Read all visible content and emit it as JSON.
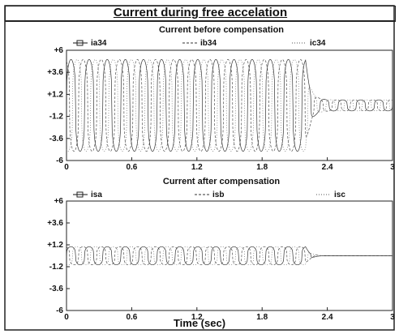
{
  "figure": {
    "title": "Current during free accelation",
    "xlabel": "Time (sec)"
  },
  "chart_data": [
    {
      "type": "line",
      "title": "Current before compensation",
      "xlabel": "Time (sec)",
      "ylabel": "",
      "xlim": [
        0,
        3
      ],
      "ylim": [
        -6,
        6
      ],
      "xticks": [
        "0",
        "0.6",
        "1.2",
        "1.8",
        "2.4",
        "3"
      ],
      "yticks": [
        "+6",
        "+3.6",
        "+1.2",
        "-1.2",
        "-3.6",
        "-6"
      ],
      "legend_position": "top",
      "series": [
        {
          "name": "ia34",
          "color": "#111111",
          "envelope_amplitude": 5.0,
          "settled_amplitude": 0.6,
          "settling_time_s": 2.2
        },
        {
          "name": "ib34",
          "color": "#333333",
          "envelope_amplitude": 5.0,
          "settled_amplitude": 0.6,
          "settling_time_s": 2.2
        },
        {
          "name": "ic34",
          "color": "#555555",
          "envelope_amplitude": 5.0,
          "settled_amplitude": 0.6,
          "settling_time_s": 2.2
        }
      ]
    },
    {
      "type": "line",
      "title": "Current after compensation",
      "xlabel": "Time (sec)",
      "ylabel": "",
      "xlim": [
        0,
        3
      ],
      "ylim": [
        -6,
        6
      ],
      "xticks": [
        "0",
        "0.6",
        "1.2",
        "1.8",
        "2.4",
        "3"
      ],
      "yticks": [
        "+6",
        "+3.6",
        "+1.2",
        "-1.2",
        "-3.6",
        "-6"
      ],
      "legend_position": "top",
      "series": [
        {
          "name": "isa",
          "color": "#111111",
          "envelope_amplitude": 1.0,
          "settled_amplitude": 0.0,
          "settling_time_s": 2.2
        },
        {
          "name": "isb",
          "color": "#333333",
          "envelope_amplitude": 1.0,
          "settled_amplitude": 0.0,
          "settling_time_s": 2.2
        },
        {
          "name": "isc",
          "color": "#555555",
          "envelope_amplitude": 1.0,
          "settled_amplitude": 0.0,
          "settling_time_s": 2.2
        }
      ]
    }
  ]
}
